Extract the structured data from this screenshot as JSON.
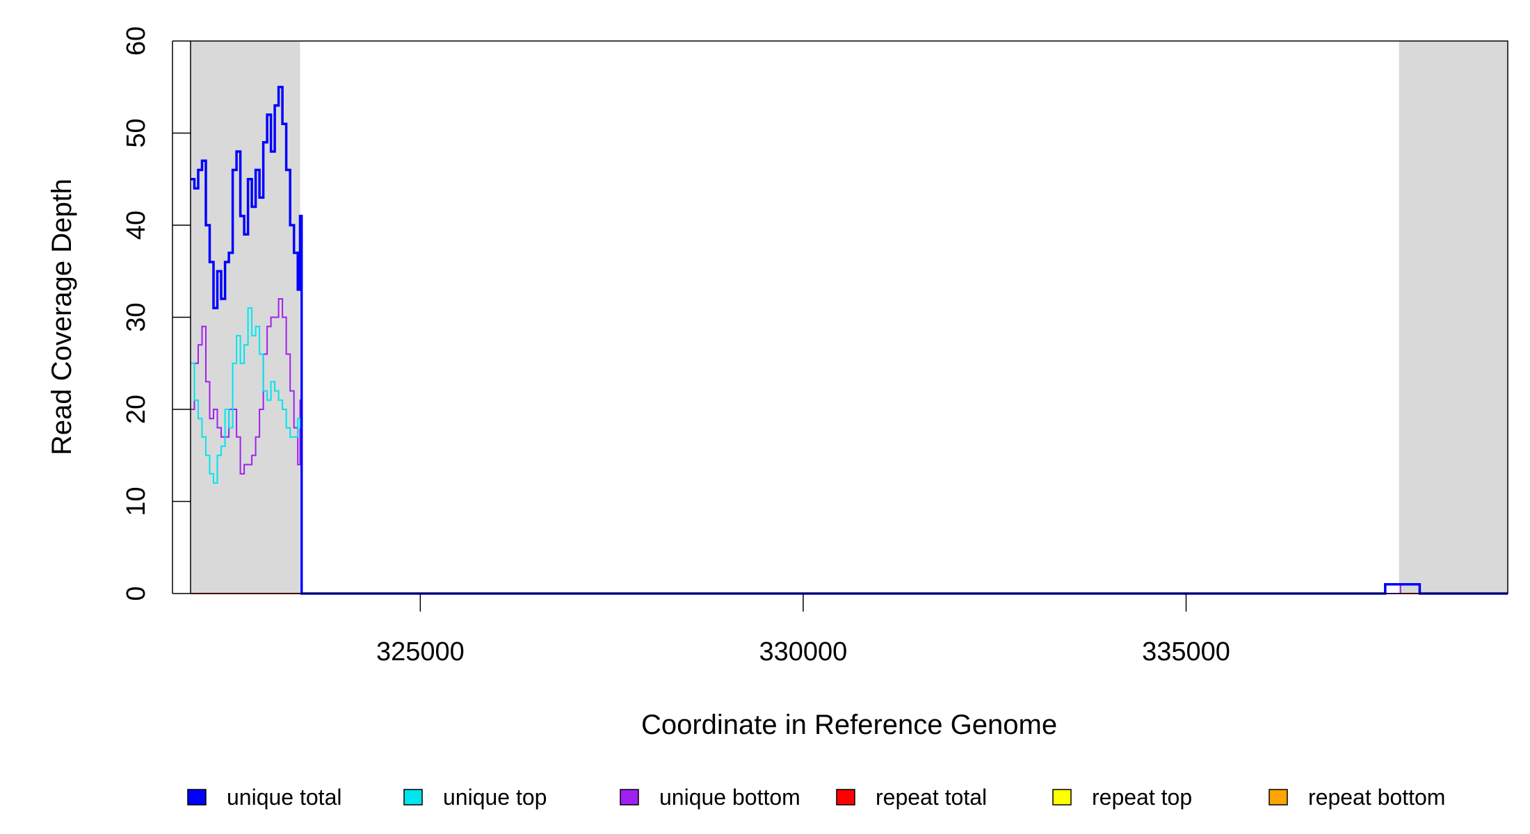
{
  "chart_data": {
    "type": "line",
    "title": "",
    "xlabel": "Coordinate in Reference Genome",
    "ylabel": "Read Coverage Depth",
    "xlim": [
      322000,
      339200
    ],
    "ylim": [
      0,
      60
    ],
    "xticks": [
      325000,
      330000,
      335000
    ],
    "xtick_labels": [
      "325000",
      "330000",
      "335000"
    ],
    "yticks": [
      0,
      10,
      20,
      30,
      40,
      50,
      60
    ],
    "ytick_labels": [
      "0",
      "10",
      "20",
      "30",
      "40",
      "50",
      "60"
    ],
    "grid": false,
    "legend_position": "bottom",
    "shaded_regions": [
      [
        322000,
        323430
      ],
      [
        337780,
        339200
      ]
    ],
    "shade_color": "#d9d9d9",
    "series": [
      {
        "name": "unique total",
        "color": "#0000ff",
        "x": [
          322000,
          322050,
          322100,
          322150,
          322200,
          322250,
          322300,
          322350,
          322400,
          322450,
          322500,
          322550,
          322600,
          322650,
          322700,
          322750,
          322800,
          322850,
          322900,
          322950,
          323000,
          323050,
          323100,
          323150,
          323200,
          323250,
          323300,
          323350,
          323400,
          323430,
          323450,
          337600,
          337800,
          338050,
          339200
        ],
        "values": [
          45,
          44,
          46,
          47,
          40,
          36,
          31,
          35,
          32,
          36,
          37,
          46,
          48,
          41,
          39,
          45,
          42,
          46,
          43,
          49,
          52,
          48,
          53,
          55,
          51,
          46,
          40,
          37,
          33,
          41,
          0,
          1,
          1,
          0,
          0
        ]
      },
      {
        "name": "unique top",
        "color": "#00e5ee",
        "x": [
          322000,
          322050,
          322100,
          322150,
          322200,
          322250,
          322300,
          322350,
          322400,
          322450,
          322500,
          322550,
          322600,
          322650,
          322700,
          322750,
          322800,
          322850,
          322900,
          322950,
          323000,
          323050,
          323100,
          323150,
          323200,
          323250,
          323300,
          323350,
          323400,
          323430,
          323450,
          337600,
          337800,
          338050,
          339200
        ],
        "values": [
          25,
          21,
          19,
          17,
          15,
          13,
          12,
          15,
          16,
          20,
          18,
          25,
          28,
          25,
          27,
          31,
          28,
          29,
          26,
          22,
          21,
          23,
          22,
          21,
          20,
          18,
          17,
          17,
          19,
          18,
          0,
          1,
          1,
          0,
          0
        ]
      },
      {
        "name": "unique bottom",
        "color": "#a020f0",
        "x": [
          322000,
          322050,
          322100,
          322150,
          322200,
          322250,
          322300,
          322350,
          322400,
          322450,
          322500,
          322550,
          322600,
          322650,
          322700,
          322750,
          322800,
          322850,
          322900,
          322950,
          323000,
          323050,
          323100,
          323150,
          323200,
          323250,
          323300,
          323350,
          323400,
          323430,
          323450,
          337600,
          337800,
          338050,
          339200
        ],
        "values": [
          20,
          25,
          27,
          29,
          23,
          19,
          20,
          18,
          17,
          17,
          20,
          20,
          17,
          13,
          14,
          14,
          15,
          17,
          20,
          26,
          29,
          30,
          30,
          32,
          30,
          26,
          22,
          18,
          14,
          21,
          0,
          0,
          1,
          0,
          0
        ]
      },
      {
        "name": "repeat total",
        "color": "#ff0000",
        "x": [
          322000,
          339200
        ],
        "values": [
          0,
          0
        ]
      },
      {
        "name": "repeat top",
        "color": "#ffff00",
        "x": [
          322000,
          339200
        ],
        "values": [
          0,
          0
        ]
      },
      {
        "name": "repeat bottom",
        "color": "#ffa500",
        "x": [
          322000,
          339200
        ],
        "values": [
          0,
          0
        ]
      }
    ]
  }
}
